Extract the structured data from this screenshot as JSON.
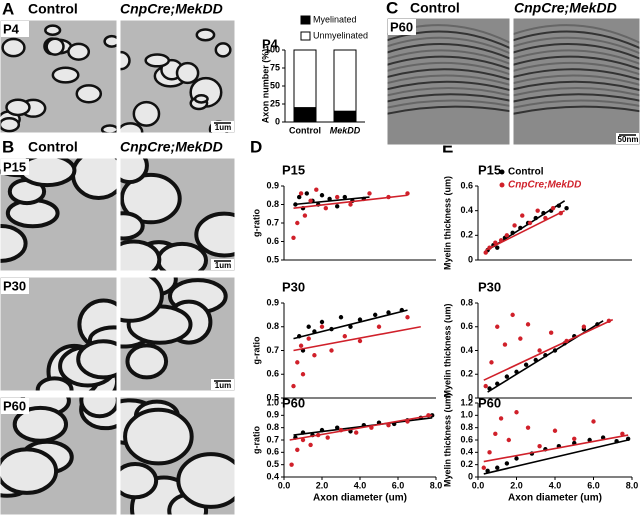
{
  "panels": {
    "A": {
      "label": "A",
      "columns": [
        "Control",
        "CnpCre;MekDD"
      ],
      "rows": [
        "P4"
      ],
      "scale": "1um"
    },
    "B": {
      "label": "B",
      "columns": [
        "Control",
        "CnpCre;MekDD"
      ],
      "rows": [
        "P15",
        "P30",
        "P60"
      ],
      "scale": "1um"
    },
    "C": {
      "label": "C",
      "columns": [
        "Control",
        "CnpCre;MekDD"
      ],
      "rows": [
        "P60"
      ],
      "scale": "50nm"
    },
    "D": {
      "label": "D"
    },
    "E": {
      "label": "E"
    }
  },
  "chart_data": [
    {
      "type": "bar",
      "stacked": true,
      "title": "P4",
      "ylabel": "Axon number (%)",
      "categories": [
        "Control",
        "MekDD"
      ],
      "ylim": [
        0,
        100
      ],
      "yticks": [
        0,
        25,
        50,
        75,
        100
      ],
      "series": [
        {
          "name": "Myelinated",
          "color": "#000000",
          "values": [
            20,
            15
          ]
        },
        {
          "name": "Unmyelinated",
          "color": "#ffffff",
          "values": [
            80,
            85
          ]
        }
      ]
    },
    {
      "type": "scatter",
      "title": "P15",
      "ylabel": "g-ratio",
      "xlim": [
        0,
        8
      ],
      "ylim": [
        0.5,
        0.9
      ],
      "yticks": [
        0.5,
        0.6,
        0.7,
        0.8,
        0.9
      ],
      "series": [
        {
          "color": "#000000",
          "x": [
            0.6,
            0.8,
            1.0,
            1.2,
            1.5,
            1.8,
            2.0,
            2.4,
            2.8,
            3.2,
            3.6,
            4.2
          ],
          "values": [
            0.8,
            0.84,
            0.78,
            0.86,
            0.82,
            0.8,
            0.85,
            0.83,
            0.79,
            0.84,
            0.82,
            0.83
          ],
          "trend": {
            "x": [
              0.5,
              4.5
            ],
            "y": [
              0.8,
              0.84
            ]
          }
        },
        {
          "color": "#d0202a",
          "x": [
            0.5,
            0.7,
            0.9,
            1.1,
            1.4,
            1.7,
            2.2,
            2.8,
            3.5,
            4.5,
            5.5,
            6.5
          ],
          "values": [
            0.62,
            0.7,
            0.86,
            0.74,
            0.82,
            0.88,
            0.78,
            0.84,
            0.8,
            0.86,
            0.84,
            0.86
          ],
          "trend": {
            "x": [
              0.5,
              6.5
            ],
            "y": [
              0.78,
              0.85
            ]
          }
        }
      ]
    },
    {
      "type": "scatter",
      "title": "P30",
      "ylabel": "g-ratio",
      "xlim": [
        0,
        8
      ],
      "ylim": [
        0.5,
        0.9
      ],
      "yticks": [
        0.5,
        0.6,
        0.7,
        0.8,
        0.9
      ],
      "series": [
        {
          "color": "#000000",
          "x": [
            0.8,
            1.0,
            1.3,
            1.6,
            2.0,
            2.5,
            3.0,
            3.5,
            4.0,
            4.8,
            5.5,
            6.2
          ],
          "values": [
            0.76,
            0.7,
            0.8,
            0.78,
            0.82,
            0.79,
            0.84,
            0.8,
            0.83,
            0.85,
            0.86,
            0.87
          ],
          "trend": {
            "x": [
              0.5,
              6.5
            ],
            "y": [
              0.75,
              0.87
            ]
          }
        },
        {
          "color": "#d0202a",
          "x": [
            0.5,
            0.7,
            0.9,
            1.0,
            1.3,
            1.6,
            2.0,
            2.5,
            3.2,
            4.0,
            5.0,
            6.5
          ],
          "values": [
            0.55,
            0.65,
            0.72,
            0.6,
            0.75,
            0.68,
            0.8,
            0.7,
            0.76,
            0.74,
            0.8,
            0.84
          ],
          "trend": {
            "x": [
              0.5,
              7.2
            ],
            "y": [
              0.7,
              0.8
            ]
          }
        }
      ]
    },
    {
      "type": "scatter",
      "title": "P60",
      "ylabel": "g-ratio",
      "xlabel": "Axon diameter (um)",
      "xlim": [
        0,
        8
      ],
      "ylim": [
        0.4,
        1.0
      ],
      "xticks": [
        {
          "value": 0,
          "label": "0.0"
        },
        {
          "value": 2,
          "label": "2.0"
        },
        {
          "value": 4,
          "label": "4.0"
        },
        {
          "value": 6,
          "label": "6.0"
        },
        {
          "value": 8,
          "label": "8.0"
        }
      ],
      "yticks": [
        0.4,
        0.5,
        0.6,
        0.7,
        0.8,
        0.9,
        {
          "value": 1.0,
          "label": "1.0"
        }
      ],
      "series": [
        {
          "color": "#000000",
          "x": [
            0.6,
            1.0,
            1.5,
            2.0,
            2.8,
            3.5,
            4.2,
            5.0,
            5.8,
            6.5,
            7.2,
            7.8
          ],
          "values": [
            0.72,
            0.76,
            0.74,
            0.78,
            0.8,
            0.77,
            0.82,
            0.84,
            0.83,
            0.86,
            0.88,
            0.9
          ],
          "trend": {
            "x": [
              0.5,
              7.8
            ],
            "y": [
              0.74,
              0.88
            ]
          }
        },
        {
          "color": "#d0202a",
          "x": [
            0.4,
            0.7,
            1.0,
            1.4,
            1.8,
            2.3,
            3.0,
            3.8,
            4.6,
            5.5,
            6.5,
            7.6
          ],
          "values": [
            0.5,
            0.62,
            0.7,
            0.66,
            0.74,
            0.72,
            0.78,
            0.76,
            0.8,
            0.82,
            0.85,
            0.9
          ],
          "trend": {
            "x": [
              0.3,
              7.8
            ],
            "y": [
              0.7,
              0.9
            ]
          }
        }
      ]
    },
    {
      "type": "scatter",
      "title": "P15",
      "ylabel": "Myelin thickness (um)",
      "xlim": [
        0,
        8
      ],
      "ylim": [
        0,
        0.6
      ],
      "yticks": [
        0,
        0.2,
        0.4,
        0.6
      ],
      "legend": "top-left",
      "series": [
        {
          "name": "Control",
          "color": "#000000",
          "x": [
            0.5,
            0.8,
            1.0,
            1.4,
            1.8,
            2.2,
            2.6,
            3.0,
            3.4,
            3.8,
            4.2,
            4.6
          ],
          "values": [
            0.08,
            0.12,
            0.1,
            0.18,
            0.22,
            0.26,
            0.3,
            0.34,
            0.38,
            0.4,
            0.44,
            0.42
          ],
          "trend": {
            "x": [
              0.4,
              4.5
            ],
            "y": [
              0.07,
              0.48
            ]
          }
        },
        {
          "name": "CnpCre;MekDD",
          "color": "#d0202a",
          "x": [
            0.4,
            0.6,
            0.9,
            1.2,
            1.5,
            1.9,
            2.3,
            2.7,
            3.1,
            3.5,
            3.9,
            4.3
          ],
          "values": [
            0.06,
            0.1,
            0.14,
            0.16,
            0.2,
            0.28,
            0.36,
            0.3,
            0.4,
            0.34,
            0.42,
            0.38
          ],
          "trend": {
            "x": [
              0.4,
              4.5
            ],
            "y": [
              0.08,
              0.4
            ]
          }
        }
      ]
    },
    {
      "type": "scatter",
      "title": "P30",
      "ylabel": "Myelin thickness (um)",
      "xlim": [
        0,
        8
      ],
      "ylim": [
        0,
        0.8
      ],
      "yticks": [
        0,
        0.2,
        0.4,
        0.6,
        0.8
      ],
      "series": [
        {
          "color": "#000000",
          "x": [
            0.6,
            1.0,
            1.5,
            2.0,
            2.5,
            3.0,
            3.5,
            4.0,
            4.5,
            5.0,
            5.5,
            6.2
          ],
          "values": [
            0.08,
            0.12,
            0.18,
            0.22,
            0.28,
            0.32,
            0.36,
            0.4,
            0.46,
            0.52,
            0.58,
            0.62
          ],
          "trend": {
            "x": [
              0.5,
              6.5
            ],
            "y": [
              0.05,
              0.65
            ]
          }
        },
        {
          "color": "#d0202a",
          "x": [
            0.4,
            0.7,
            1.0,
            1.4,
            1.8,
            2.2,
            2.6,
            3.2,
            3.8,
            4.6,
            5.5,
            6.8
          ],
          "values": [
            0.1,
            0.3,
            0.6,
            0.45,
            0.7,
            0.5,
            0.62,
            0.4,
            0.55,
            0.48,
            0.6,
            0.65
          ],
          "trend": {
            "x": [
              0.3,
              7.0
            ],
            "y": [
              0.15,
              0.66
            ]
          }
        }
      ]
    },
    {
      "type": "scatter",
      "title": "P60",
      "ylabel": "Myelin thickness (um)",
      "xlabel": "Axon diameter (um)",
      "xlim": [
        0,
        8
      ],
      "ylim": [
        0,
        1.2
      ],
      "xticks": [
        {
          "value": 0,
          "label": "0.0"
        },
        {
          "value": 2,
          "label": "2.0"
        },
        {
          "value": 4,
          "label": "4.0"
        },
        {
          "value": 6,
          "label": "6.0"
        },
        {
          "value": 8,
          "label": "8.0"
        }
      ],
      "yticks": [
        0,
        0.2,
        0.4,
        0.6,
        0.8,
        {
          "value": 1.0,
          "label": "1.0"
        },
        1.2
      ],
      "series": [
        {
          "color": "#000000",
          "x": [
            0.5,
            1.0,
            1.5,
            2.0,
            2.8,
            3.5,
            4.2,
            5.0,
            5.8,
            6.5,
            7.2,
            7.8
          ],
          "values": [
            0.1,
            0.15,
            0.22,
            0.3,
            0.38,
            0.45,
            0.5,
            0.55,
            0.6,
            0.64,
            0.58,
            0.62
          ],
          "trend": {
            "x": [
              0.3,
              7.8
            ],
            "y": [
              0.05,
              0.6
            ]
          }
        },
        {
          "color": "#d0202a",
          "x": [
            0.3,
            0.6,
            0.9,
            1.2,
            1.6,
            2.0,
            2.6,
            3.2,
            4.0,
            5.0,
            6.0,
            7.5
          ],
          "values": [
            0.15,
            0.4,
            0.7,
            0.95,
            0.6,
            1.05,
            0.8,
            0.5,
            0.75,
            0.62,
            0.9,
            0.7
          ],
          "trend": {
            "x": [
              0.3,
              7.8
            ],
            "y": [
              0.25,
              0.68
            ]
          }
        }
      ]
    }
  ]
}
